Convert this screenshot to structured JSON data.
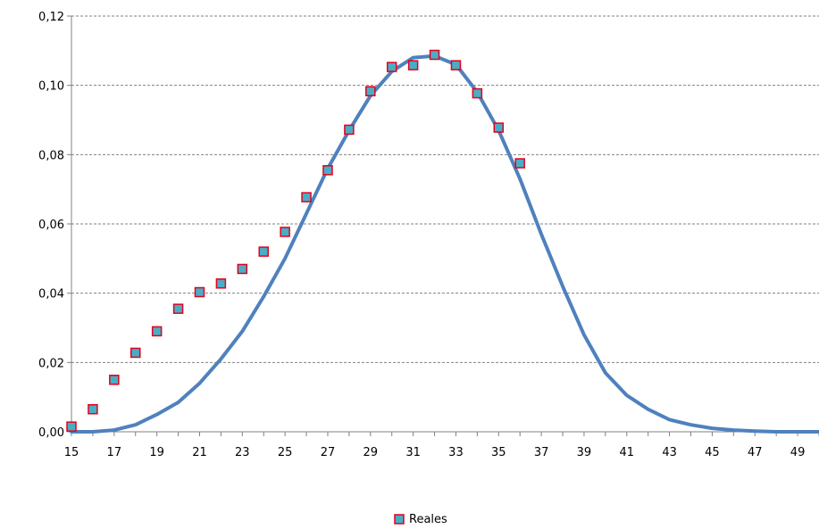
{
  "chart_data": {
    "type": "scatter",
    "x_ticks": [
      "15",
      "17",
      "19",
      "21",
      "23",
      "25",
      "27",
      "29",
      "31",
      "33",
      "35",
      "37",
      "39",
      "41",
      "43",
      "45",
      "47",
      "49"
    ],
    "y_ticks": [
      "0,00",
      "0,02",
      "0,04",
      "0,06",
      "0,08",
      "0,10",
      "0,12"
    ],
    "xlim": [
      15,
      50
    ],
    "ylim": [
      0,
      0.12
    ],
    "grid": "horizontal-dashed",
    "legend_position": "bottom-center",
    "colors": {
      "scatter_fill": "#4BACC6",
      "scatter_edge": "#E3001B",
      "line": "#4F81BD",
      "grid": "#808080",
      "axis": "#808080"
    },
    "series": [
      {
        "name": "Reales",
        "type": "scatter",
        "x": [
          15,
          16,
          17,
          18,
          19,
          20,
          21,
          22,
          23,
          24,
          25,
          26,
          27,
          28,
          29,
          30,
          31,
          32,
          33,
          34,
          35,
          36
        ],
        "y": [
          0.0015,
          0.0065,
          0.015,
          0.0228,
          0.029,
          0.0355,
          0.0403,
          0.0428,
          0.047,
          0.052,
          0.0577,
          0.0677,
          0.0755,
          0.0872,
          0.0983,
          0.1053,
          0.1058,
          0.1088,
          0.1058,
          0.0977,
          0.0878,
          0.0775
        ]
      },
      {
        "type": "line",
        "x": [
          15,
          16,
          17,
          18,
          19,
          20,
          21,
          22,
          23,
          24,
          25,
          26,
          27,
          28,
          29,
          30,
          31,
          32,
          33,
          34,
          35,
          36,
          37,
          38,
          39,
          40,
          41,
          42,
          43,
          44,
          45,
          46,
          47,
          48,
          49,
          50
        ],
        "y": [
          0.0,
          0.0,
          0.0005,
          0.002,
          0.005,
          0.0085,
          0.014,
          0.021,
          0.029,
          0.039,
          0.05,
          0.063,
          0.076,
          0.087,
          0.097,
          0.104,
          0.108,
          0.1085,
          0.106,
          0.098,
          0.087,
          0.073,
          0.057,
          0.042,
          0.028,
          0.017,
          0.0105,
          0.0065,
          0.0035,
          0.002,
          0.001,
          0.0005,
          0.0002,
          0.0,
          0.0,
          0.0
        ]
      }
    ]
  }
}
